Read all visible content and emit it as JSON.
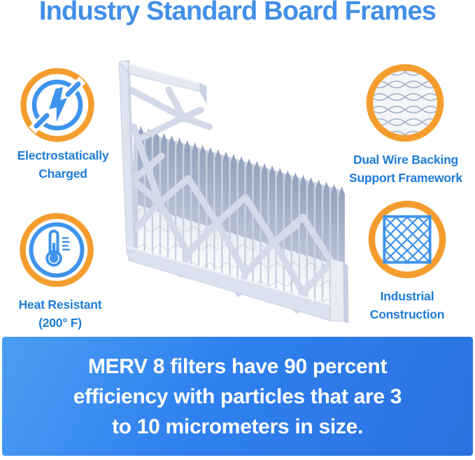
{
  "title": "Industry Standard Board Frames",
  "features": [
    {
      "name": "electrostatically-charged",
      "icon": "lightning-icon",
      "lines": [
        "Electrostatically",
        "Charged"
      ]
    },
    {
      "name": "dual-wire-backing",
      "icon": "wire-mesh-icon",
      "lines": [
        "Dual Wire Backing",
        "Support Framework"
      ]
    },
    {
      "name": "heat-resistant",
      "icon": "thermometer-icon",
      "lines": [
        "Heat Resistant",
        "(200° F)"
      ]
    },
    {
      "name": "industrial-construction",
      "icon": "diamond-grid-icon",
      "lines": [
        "Industrial",
        "Construction"
      ]
    }
  ],
  "banner": {
    "lines": [
      "MERV 8 filters have 90 percent",
      "efficiency with particles that are 3",
      "to 10 micrometers in size."
    ]
  },
  "colors": {
    "title_blue": "#418FE8",
    "label_blue": "#1E7CD8",
    "icon_blue": "#3E93EC",
    "accent_orange": "#F49D2E",
    "banner_gradient_start": "#4C9DF3",
    "banner_gradient_end": "#2B72DF"
  }
}
